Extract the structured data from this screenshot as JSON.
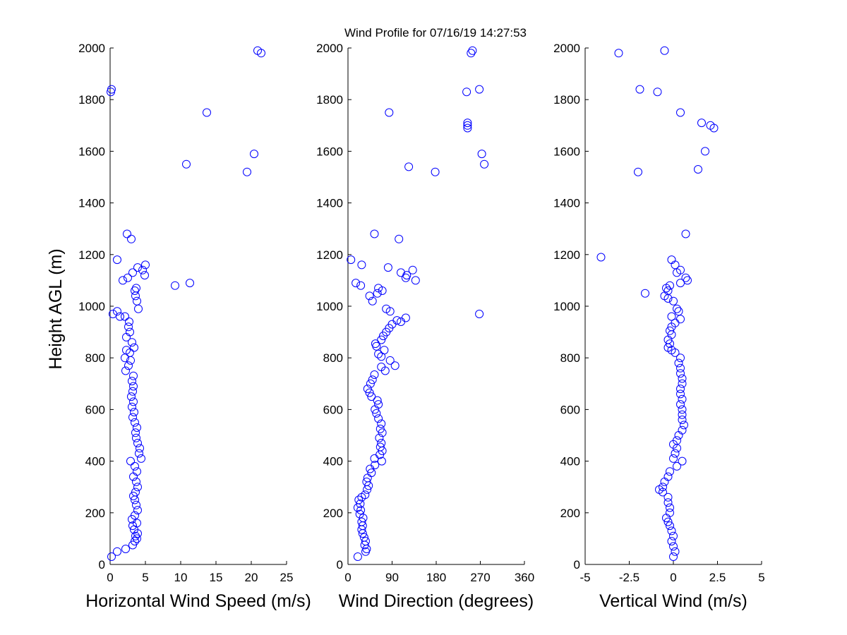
{
  "chart_data": {
    "type": "scatter",
    "title": "Wind Profile for  07/16/19 14:27:53",
    "ylabel": "Height AGL (m)",
    "ylim": [
      0,
      2000
    ],
    "yticks": [
      "0",
      "200",
      "400",
      "600",
      "800",
      "1000",
      "1200",
      "1400",
      "1600",
      "1800",
      "2000"
    ],
    "marker_color": "#0000ff",
    "marker": "circle",
    "grid": false,
    "panels": [
      {
        "xlabel": "Horizontal Wind Speed (m/s)",
        "xlim": [
          0,
          25
        ],
        "xticks": [
          "0",
          "5",
          "10",
          "15",
          "20",
          "25"
        ],
        "points": [
          [
            0.2,
            30
          ],
          [
            1,
            50
          ],
          [
            2.2,
            60
          ],
          [
            3.2,
            75
          ],
          [
            3.5,
            90
          ],
          [
            3.8,
            100
          ],
          [
            3.6,
            110
          ],
          [
            3.9,
            120
          ],
          [
            3.4,
            135
          ],
          [
            3.2,
            150
          ],
          [
            3.8,
            160
          ],
          [
            3.1,
            175
          ],
          [
            3.5,
            190
          ],
          [
            3.9,
            210
          ],
          [
            3.7,
            230
          ],
          [
            3.5,
            250
          ],
          [
            3.3,
            265
          ],
          [
            3.6,
            280
          ],
          [
            3.9,
            300
          ],
          [
            3.7,
            320
          ],
          [
            3.3,
            340
          ],
          [
            3.8,
            360
          ],
          [
            3.5,
            380
          ],
          [
            2.9,
            400
          ],
          [
            4.4,
            410
          ],
          [
            4.1,
            430
          ],
          [
            4.2,
            450
          ],
          [
            3.9,
            470
          ],
          [
            3.7,
            490
          ],
          [
            3.6,
            510
          ],
          [
            3.8,
            530
          ],
          [
            3.5,
            550
          ],
          [
            3.2,
            570
          ],
          [
            3.4,
            590
          ],
          [
            3.1,
            610
          ],
          [
            3.3,
            630
          ],
          [
            3.0,
            650
          ],
          [
            3.2,
            670
          ],
          [
            3.3,
            690
          ],
          [
            3.1,
            710
          ],
          [
            3.3,
            730
          ],
          [
            2.2,
            750
          ],
          [
            2.6,
            770
          ],
          [
            2.9,
            790
          ],
          [
            2.1,
            800
          ],
          [
            2.8,
            820
          ],
          [
            2.3,
            830
          ],
          [
            3.4,
            840
          ],
          [
            3.1,
            860
          ],
          [
            2.3,
            880
          ],
          [
            2.8,
            900
          ],
          [
            2.6,
            920
          ],
          [
            2.7,
            940
          ],
          [
            2.1,
            960
          ],
          [
            1.4,
            960
          ],
          [
            0.4,
            970
          ],
          [
            1.0,
            980
          ],
          [
            4.0,
            990
          ],
          [
            3.8,
            1020
          ],
          [
            3.6,
            1040
          ],
          [
            3.5,
            1060
          ],
          [
            3.7,
            1070
          ],
          [
            9.2,
            1080
          ],
          [
            11.3,
            1090
          ],
          [
            1.8,
            1100
          ],
          [
            2.5,
            1110
          ],
          [
            4.9,
            1120
          ],
          [
            3.2,
            1130
          ],
          [
            4.6,
            1140
          ],
          [
            3.9,
            1150
          ],
          [
            5.0,
            1160
          ],
          [
            1.0,
            1180
          ],
          [
            3.0,
            1260
          ],
          [
            2.4,
            1280
          ],
          [
            19.4,
            1520
          ],
          [
            10.8,
            1550
          ],
          [
            20.4,
            1590
          ],
          [
            13.7,
            1750
          ],
          [
            0.1,
            1830
          ],
          [
            0.2,
            1840
          ],
          [
            21.4,
            1980
          ],
          [
            20.9,
            1990
          ]
        ]
      },
      {
        "xlabel": "Wind Direction (degrees)",
        "xlim": [
          0,
          360
        ],
        "xticks": [
          "0",
          "90",
          "180",
          "270",
          "360"
        ],
        "points": [
          [
            20,
            30
          ],
          [
            36,
            50
          ],
          [
            38,
            60
          ],
          [
            34,
            75
          ],
          [
            36,
            90
          ],
          [
            33,
            105
          ],
          [
            30,
            120
          ],
          [
            28,
            135
          ],
          [
            30,
            150
          ],
          [
            28,
            165
          ],
          [
            31,
            180
          ],
          [
            24,
            195
          ],
          [
            26,
            210
          ],
          [
            20,
            220
          ],
          [
            25,
            235
          ],
          [
            22,
            250
          ],
          [
            28,
            260
          ],
          [
            35,
            270
          ],
          [
            39,
            290
          ],
          [
            42,
            305
          ],
          [
            38,
            320
          ],
          [
            40,
            335
          ],
          [
            48,
            355
          ],
          [
            45,
            370
          ],
          [
            55,
            385
          ],
          [
            69,
            400
          ],
          [
            54,
            410
          ],
          [
            65,
            425
          ],
          [
            70,
            440
          ],
          [
            66,
            455
          ],
          [
            68,
            470
          ],
          [
            64,
            490
          ],
          [
            70,
            510
          ],
          [
            66,
            525
          ],
          [
            68,
            545
          ],
          [
            62,
            565
          ],
          [
            58,
            585
          ],
          [
            55,
            600
          ],
          [
            62,
            620
          ],
          [
            60,
            635
          ],
          [
            48,
            650
          ],
          [
            44,
            665
          ],
          [
            40,
            680
          ],
          [
            46,
            700
          ],
          [
            50,
            715
          ],
          [
            54,
            735
          ],
          [
            76,
            750
          ],
          [
            68,
            765
          ],
          [
            96,
            770
          ],
          [
            86,
            790
          ],
          [
            68,
            805
          ],
          [
            62,
            815
          ],
          [
            74,
            830
          ],
          [
            58,
            845
          ],
          [
            56,
            855
          ],
          [
            68,
            870
          ],
          [
            72,
            885
          ],
          [
            78,
            900
          ],
          [
            84,
            915
          ],
          [
            90,
            930
          ],
          [
            100,
            945
          ],
          [
            108,
            940
          ],
          [
            118,
            955
          ],
          [
            78,
            990
          ],
          [
            86,
            980
          ],
          [
            268,
            970
          ],
          [
            50,
            1020
          ],
          [
            44,
            1040
          ],
          [
            60,
            1050
          ],
          [
            70,
            1060
          ],
          [
            62,
            1070
          ],
          [
            26,
            1080
          ],
          [
            16,
            1090
          ],
          [
            138,
            1100
          ],
          [
            118,
            1110
          ],
          [
            120,
            1120
          ],
          [
            108,
            1130
          ],
          [
            132,
            1140
          ],
          [
            82,
            1150
          ],
          [
            28,
            1160
          ],
          [
            6,
            1180
          ],
          [
            104,
            1260
          ],
          [
            54,
            1280
          ],
          [
            178,
            1520
          ],
          [
            124,
            1540
          ],
          [
            278,
            1550
          ],
          [
            273,
            1590
          ],
          [
            244,
            1690
          ],
          [
            244,
            1700
          ],
          [
            244,
            1710
          ],
          [
            84,
            1750
          ],
          [
            242,
            1830
          ],
          [
            268,
            1840
          ],
          [
            251,
            1980
          ],
          [
            254,
            1990
          ]
        ]
      },
      {
        "xlabel": "Vertical Wind (m/s)",
        "xlim": [
          -5,
          5
        ],
        "xticks": [
          "-5",
          "-2.5",
          "0",
          "2.5",
          "5"
        ],
        "points": [
          [
            0,
            30
          ],
          [
            0.1,
            50
          ],
          [
            0,
            70
          ],
          [
            -0.1,
            90
          ],
          [
            0,
            110
          ],
          [
            -0.1,
            130
          ],
          [
            -0.2,
            150
          ],
          [
            -0.3,
            165
          ],
          [
            -0.4,
            180
          ],
          [
            -0.2,
            200
          ],
          [
            -0.2,
            220
          ],
          [
            -0.3,
            240
          ],
          [
            -0.3,
            260
          ],
          [
            -0.6,
            280
          ],
          [
            -0.8,
            290
          ],
          [
            -0.6,
            300
          ],
          [
            -0.5,
            320
          ],
          [
            -0.3,
            340
          ],
          [
            -0.2,
            360
          ],
          [
            0.2,
            380
          ],
          [
            0.5,
            400
          ],
          [
            0,
            410
          ],
          [
            0.1,
            430
          ],
          [
            0.2,
            450
          ],
          [
            0,
            465
          ],
          [
            0.2,
            480
          ],
          [
            0.3,
            500
          ],
          [
            0.5,
            520
          ],
          [
            0.6,
            540
          ],
          [
            0.5,
            560
          ],
          [
            0.5,
            580
          ],
          [
            0.5,
            600
          ],
          [
            0.4,
            620
          ],
          [
            0.5,
            640
          ],
          [
            0.4,
            660
          ],
          [
            0.4,
            680
          ],
          [
            0.5,
            700
          ],
          [
            0.5,
            720
          ],
          [
            0.4,
            740
          ],
          [
            0.4,
            760
          ],
          [
            0.3,
            780
          ],
          [
            0.4,
            800
          ],
          [
            0.1,
            820
          ],
          [
            -0.1,
            830
          ],
          [
            -0.3,
            840
          ],
          [
            -0.2,
            855
          ],
          [
            -0.3,
            870
          ],
          [
            -0.1,
            890
          ],
          [
            -0.2,
            905
          ],
          [
            -0.1,
            920
          ],
          [
            0.1,
            935
          ],
          [
            0.4,
            950
          ],
          [
            -0.1,
            960
          ],
          [
            0.3,
            980
          ],
          [
            0.2,
            990
          ],
          [
            -0.3,
            1030
          ],
          [
            -0.5,
            1040
          ],
          [
            -0.3,
            1060
          ],
          [
            -1.6,
            1050
          ],
          [
            -0.4,
            1070
          ],
          [
            0,
            1020
          ],
          [
            -0.2,
            1080
          ],
          [
            0.4,
            1090
          ],
          [
            0.8,
            1100
          ],
          [
            0.7,
            1110
          ],
          [
            0.2,
            1130
          ],
          [
            0.4,
            1140
          ],
          [
            0.1,
            1160
          ],
          [
            -0.1,
            1180
          ],
          [
            -4.1,
            1190
          ],
          [
            0.7,
            1280
          ],
          [
            -2.0,
            1520
          ],
          [
            1.4,
            1530
          ],
          [
            1.8,
            1600
          ],
          [
            2.3,
            1690
          ],
          [
            2.1,
            1700
          ],
          [
            1.6,
            1710
          ],
          [
            0.4,
            1750
          ],
          [
            -0.9,
            1830
          ],
          [
            -1.9,
            1840
          ],
          [
            -3.1,
            1980
          ],
          [
            -0.5,
            1990
          ]
        ]
      }
    ]
  }
}
